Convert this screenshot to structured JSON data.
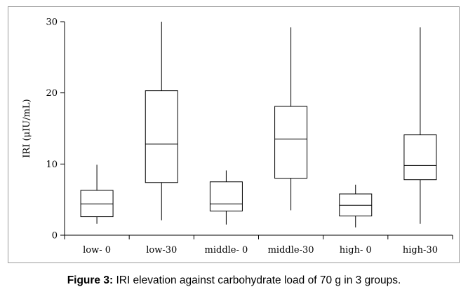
{
  "chart_data": {
    "type": "boxplot",
    "ylabel": "IRI (μIU/mL)",
    "ylim": [
      0,
      30
    ],
    "yticks": [
      0,
      10,
      20,
      30
    ],
    "grid": false,
    "categories": [
      "low- 0",
      "low-30",
      "middle- 0",
      "middle-30",
      "high- 0",
      "high-30"
    ],
    "boxes": [
      {
        "min": 1.6,
        "q1": 2.6,
        "median": 4.4,
        "q3": 6.3,
        "max": 9.9
      },
      {
        "min": 2.1,
        "q1": 7.4,
        "median": 12.8,
        "q3": 20.3,
        "max": 30.0
      },
      {
        "min": 1.5,
        "q1": 3.4,
        "median": 4.4,
        "q3": 7.5,
        "max": 9.1
      },
      {
        "min": 3.5,
        "q1": 8.0,
        "median": 13.5,
        "q3": 18.1,
        "max": 29.2
      },
      {
        "min": 1.1,
        "q1": 2.7,
        "median": 4.2,
        "q3": 5.8,
        "max": 7.1
      },
      {
        "min": 1.6,
        "q1": 7.8,
        "median": 9.8,
        "q3": 14.1,
        "max": 29.2
      }
    ]
  },
  "caption": {
    "label": "Figure 3:",
    "text": " IRI elevation against carbohydrate load of 70 g in 3 groups."
  }
}
